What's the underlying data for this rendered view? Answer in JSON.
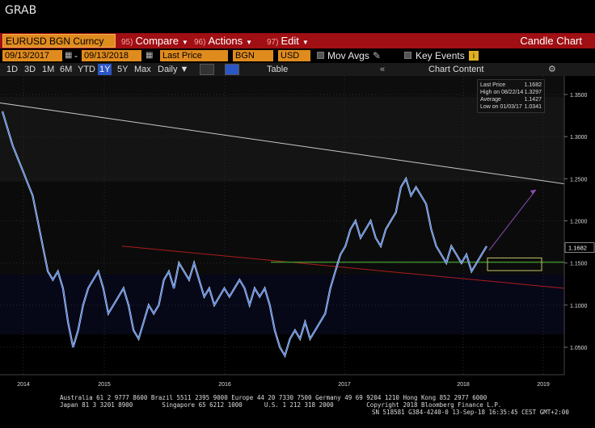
{
  "window": {
    "title": "GRAB"
  },
  "toolbar": {
    "ticker": "EURUSD BGN Curncy",
    "menus": [
      {
        "num": "95)",
        "label": "Compare"
      },
      {
        "num": "96)",
        "label": "Actions"
      },
      {
        "num": "97)",
        "label": "Edit"
      }
    ],
    "chart_type": "Candle Chart"
  },
  "settings": {
    "start_date": "09/13/2017",
    "end_date": "09/13/2018",
    "field": "Last Price",
    "source": "BGN",
    "currency": "USD",
    "mov_avgs": "Mov Avgs",
    "key_events": "Key Events"
  },
  "periods": [
    "1D",
    "3D",
    "1M",
    "6M",
    "YTD",
    "1Y",
    "5Y",
    "Max"
  ],
  "selected_period": "1Y",
  "frequency": "Daily",
  "table_label": "Table",
  "chart_content_label": "Chart Content",
  "legend": {
    "items": [
      {
        "label": "Last Price",
        "value": "1.1682"
      },
      {
        "label": "High on 08/22/14",
        "value": "1.3297"
      },
      {
        "label": "Average",
        "value": "1.1427"
      },
      {
        "label": "Low on 01/03/17",
        "value": "1.0341"
      }
    ]
  },
  "chart_data": {
    "type": "line",
    "title": "",
    "xlabel": "",
    "ylabel": "",
    "x_ticks": [
      "2014",
      "2015",
      "2016",
      "2017",
      "2018",
      "2019"
    ],
    "y_ticks": [
      "1.3500",
      "1.3000",
      "1.2500",
      "1.2000",
      "1.1500",
      "1.1000",
      "1.0500"
    ],
    "ylim": [
      1.03,
      1.37
    ],
    "last_price_label": "1.1682",
    "series": [
      {
        "values": [
          1.33,
          1.31,
          1.29,
          1.275,
          1.26,
          1.245,
          1.23,
          1.2,
          1.17,
          1.14,
          1.13,
          1.14,
          1.12,
          1.08,
          1.05,
          1.07,
          1.1,
          1.12,
          1.13,
          1.14,
          1.12,
          1.09,
          1.1,
          1.11,
          1.12,
          1.1,
          1.07,
          1.06,
          1.08,
          1.1,
          1.09,
          1.1,
          1.13,
          1.14,
          1.12,
          1.15,
          1.14,
          1.13,
          1.15,
          1.13,
          1.11,
          1.12,
          1.1,
          1.11,
          1.12,
          1.11,
          1.12,
          1.13,
          1.12,
          1.1,
          1.12,
          1.11,
          1.12,
          1.1,
          1.07,
          1.05,
          1.04,
          1.06,
          1.07,
          1.06,
          1.08,
          1.06,
          1.07,
          1.08,
          1.09,
          1.12,
          1.14,
          1.16,
          1.17,
          1.19,
          1.2,
          1.18,
          1.19,
          1.2,
          1.18,
          1.17,
          1.19,
          1.2,
          1.21,
          1.24,
          1.25,
          1.23,
          1.24,
          1.23,
          1.22,
          1.19,
          1.17,
          1.16,
          1.15,
          1.17,
          1.16,
          1.15,
          1.16,
          1.14,
          1.15,
          1.16,
          1.17
        ]
      }
    ],
    "annotations": [
      {
        "type": "trendline",
        "color": "#c8c8c8",
        "from": {
          "x": "2014",
          "y": 1.34
        },
        "to": {
          "x": "2019",
          "y": 1.244
        }
      },
      {
        "type": "trendline",
        "color": "#b01c1c",
        "from": {
          "x": "2015",
          "y": 1.17
        },
        "to": {
          "x": "2019",
          "y": 1.12
        }
      },
      {
        "type": "horizontal",
        "color": "#3c8a2a",
        "y": 1.151
      },
      {
        "type": "arrow",
        "color": "#8a4fb5",
        "y_from": 1.165,
        "y_to": 1.237
      },
      {
        "type": "box",
        "color": "#c9c36a",
        "y_top": 1.156,
        "y_bottom": 1.141
      }
    ],
    "grid": true,
    "legend_position": "top-right"
  },
  "footer": {
    "line1": "Australia 61 2 9777 8600 Brazil 5511 2395 9000 Europe 44 20 7330 7500 Germany 49 69 9204 1210 Hong Kong 852 2977 6000",
    "line2": "Japan 81 3 3201 8900        Singapore 65 6212 1000      U.S. 1 212 318 2000         Copyright 2018 Bloomberg Finance L.P.",
    "line3": "SN 518581 G384-4240-0 13-Sep-18 16:35:45 CEST GMT+2:00"
  }
}
